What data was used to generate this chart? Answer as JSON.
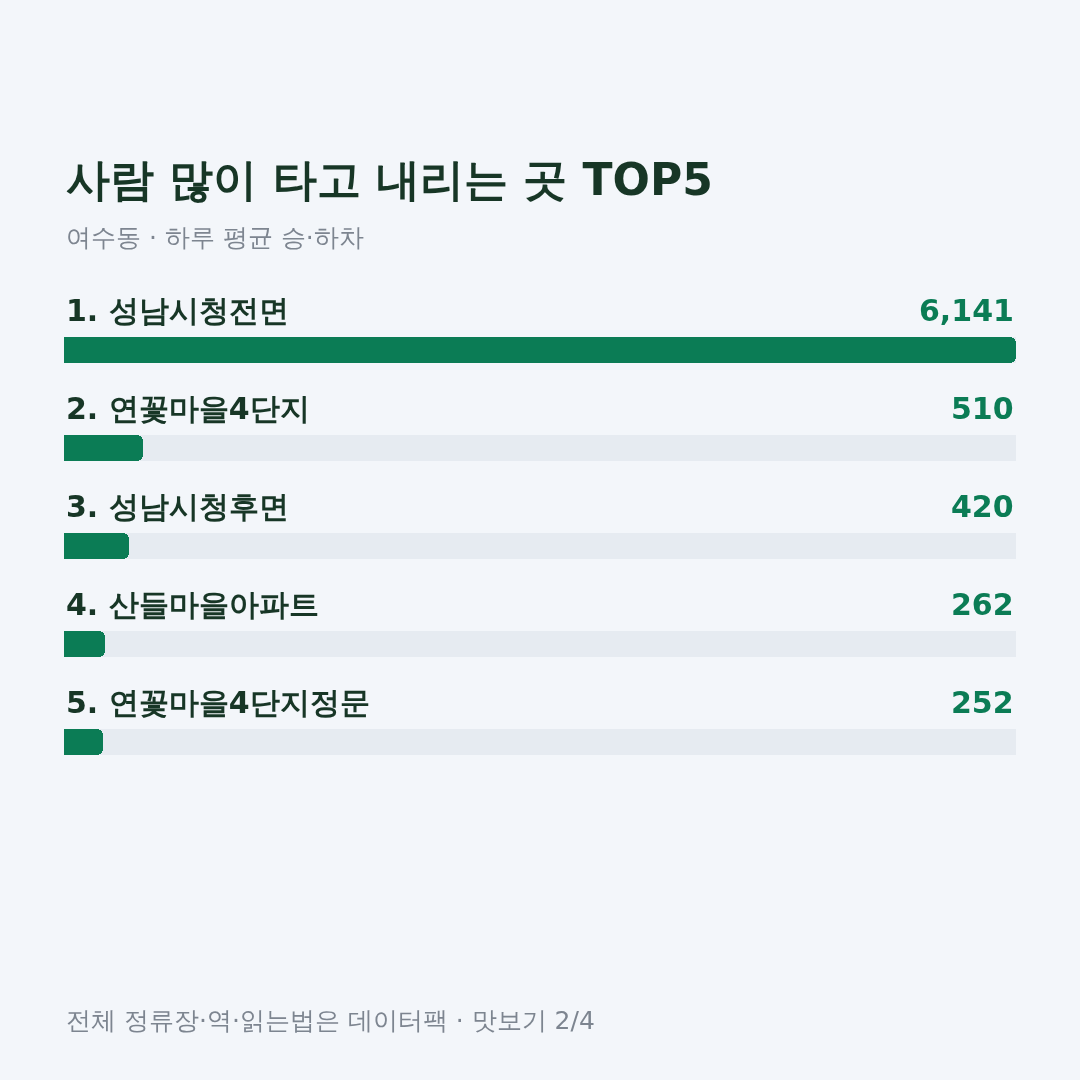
{
  "chart_data": {
    "type": "bar",
    "orientation": "horizontal",
    "title": "사람 많이 타고 내리는 곳 TOP5",
    "subtitle": "여수동 · 하루 평균 승·하차",
    "categories": [
      "1. 성남시청전면",
      "2. 연꽃마을4단지",
      "3. 성남시청후면",
      "4. 산들마을아파트",
      "5. 연꽃마을4단지정문"
    ],
    "values": [
      6141,
      510,
      420,
      262,
      252
    ],
    "value_labels": [
      "6,141",
      "510",
      "420",
      "262",
      "252"
    ],
    "color": "#0b7c55",
    "annotations": [
      "전체 정류장·역·읽는법은 데이터팩 · 맛보기 2/4"
    ],
    "legend": false
  }
}
